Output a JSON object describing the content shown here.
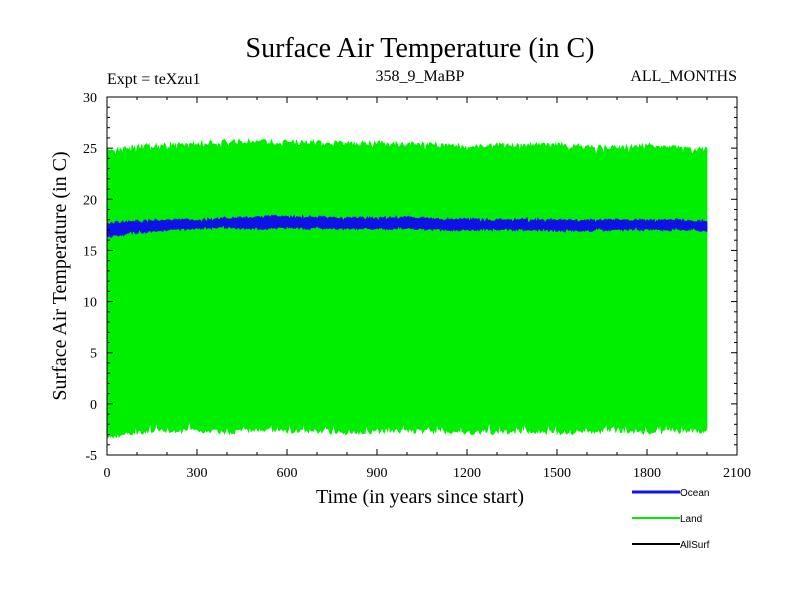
{
  "chart_data": {
    "type": "line",
    "title": "Surface Air Temperature (in C)",
    "subtitle_left": "Expt = teXzu1",
    "subtitle_center": "358_9_MaBP",
    "subtitle_right": "ALL_MONTHS",
    "xlabel": "Time (in years since start)",
    "ylabel": "Surface Air Temperature (in C)",
    "xlim": [
      0,
      2100
    ],
    "ylim": [
      -5,
      30
    ],
    "xticks": [
      0,
      300,
      600,
      900,
      1200,
      1500,
      1800,
      2100
    ],
    "yticks": [
      -5,
      0,
      5,
      10,
      15,
      20,
      25,
      30
    ],
    "grid": false,
    "legend_position": "bottom-right",
    "series": [
      {
        "name": "Ocean",
        "color": "#1010e8",
        "description": "monthly values oscillating narrowly around ~17.5",
        "envelope": {
          "x": [
            0,
            100,
            200,
            300,
            400,
            500,
            600,
            700,
            800,
            900,
            1000,
            1100,
            1200,
            1300,
            1400,
            1500,
            1600,
            1700,
            1800,
            1900,
            2000
          ],
          "min": [
            16.2,
            16.6,
            16.9,
            17.0,
            17.1,
            17.0,
            17.1,
            17.0,
            17.0,
            17.0,
            17.0,
            16.9,
            16.9,
            16.9,
            16.9,
            16.8,
            16.8,
            16.9,
            16.9,
            16.9,
            16.8
          ],
          "max": [
            17.8,
            18.0,
            18.1,
            18.1,
            18.3,
            18.4,
            18.5,
            18.4,
            18.3,
            18.3,
            18.4,
            18.2,
            18.2,
            18.1,
            18.2,
            18.1,
            18.1,
            18.1,
            18.1,
            18.1,
            18.0
          ]
        }
      },
      {
        "name": "Land",
        "color": "#00ee00",
        "description": "monthly values with large seasonal cycle",
        "envelope": {
          "x": [
            0,
            100,
            200,
            300,
            400,
            500,
            600,
            700,
            800,
            900,
            1000,
            1100,
            1200,
            1300,
            1400,
            1500,
            1600,
            1700,
            1800,
            1900,
            2000
          ],
          "min": [
            -3.5,
            -3.0,
            -2.8,
            -2.9,
            -3.0,
            -2.8,
            -2.9,
            -2.9,
            -3.0,
            -2.9,
            -2.9,
            -2.9,
            -3.0,
            -3.0,
            -2.9,
            -3.0,
            -3.0,
            -2.8,
            -3.0,
            -2.9,
            -2.9
          ],
          "max": [
            25.2,
            25.4,
            25.6,
            25.7,
            25.9,
            25.9,
            25.8,
            25.8,
            25.7,
            25.7,
            25.6,
            25.6,
            25.5,
            25.5,
            25.5,
            25.6,
            25.4,
            25.3,
            25.5,
            25.3,
            25.1
          ]
        }
      },
      {
        "name": "AllSurf",
        "color": "#000000",
        "description": "legend entry only, not visible in plot"
      }
    ]
  }
}
